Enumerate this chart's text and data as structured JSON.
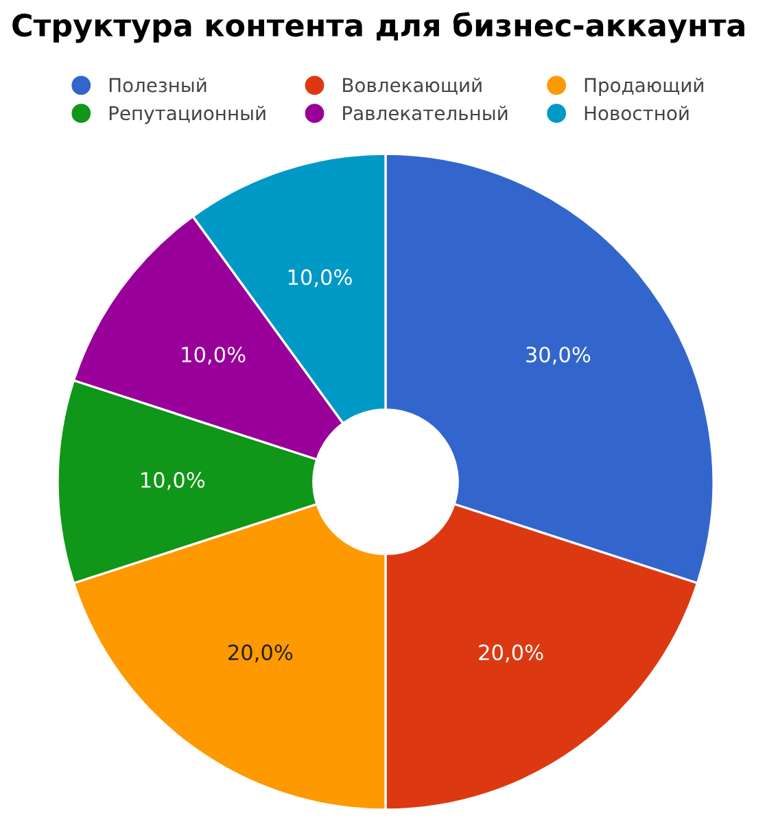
{
  "chart_data": {
    "type": "donut",
    "title": "Структура контента для бизнес-аккаунта",
    "categories": [
      "Полезный",
      "Вовлекающий",
      "Продающий",
      "Репутационный",
      "Равлекательный",
      "Новостной"
    ],
    "values": [
      30,
      20,
      20,
      10,
      10,
      10
    ],
    "colors": [
      "#3366cc",
      "#dc3912",
      "#ff9900",
      "#109618",
      "#990099",
      "#0099c6"
    ],
    "value_labels": [
      "30,0%",
      "20,0%",
      "20,0%",
      "10,0%",
      "10,0%",
      "10,0%"
    ],
    "legend": "top"
  }
}
